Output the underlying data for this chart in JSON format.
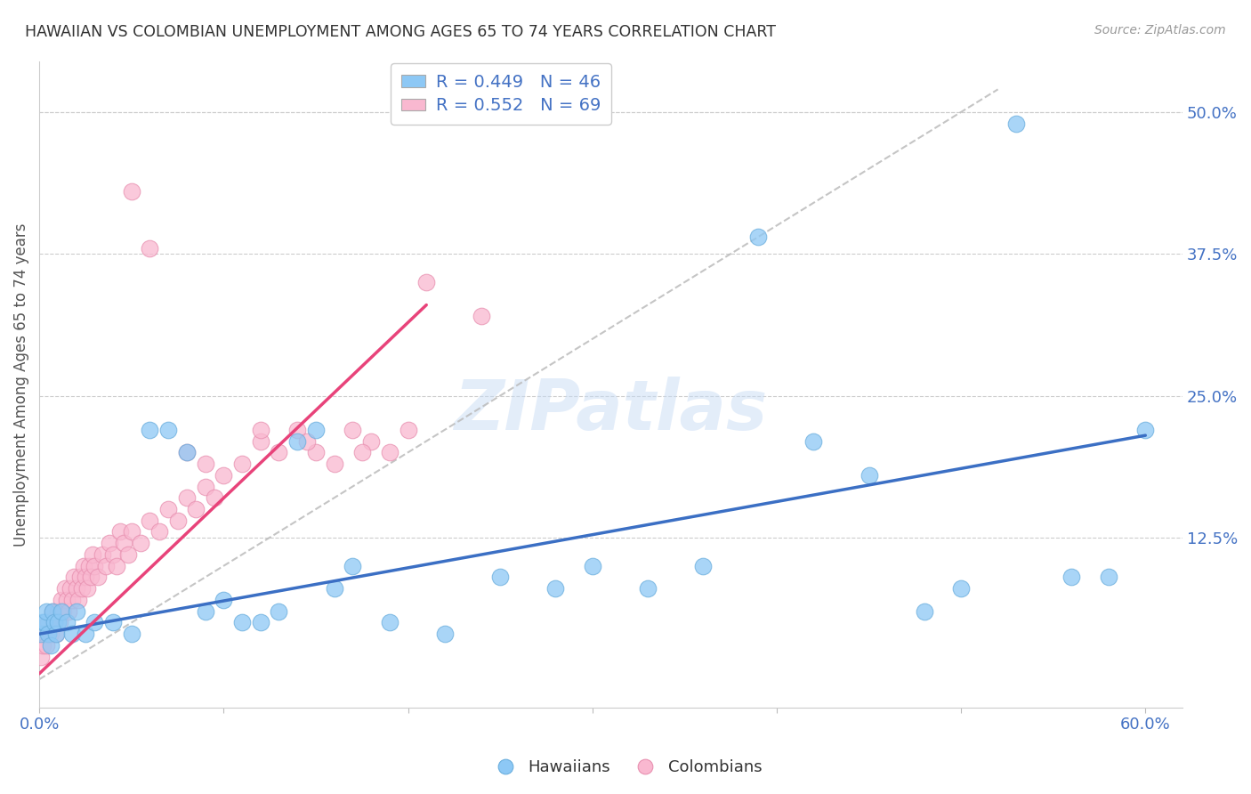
{
  "title": "HAWAIIAN VS COLOMBIAN UNEMPLOYMENT AMONG AGES 65 TO 74 YEARS CORRELATION CHART",
  "source": "Source: ZipAtlas.com",
  "ylabel": "Unemployment Among Ages 65 to 74 years",
  "xlim": [
    0.0,
    0.62
  ],
  "ylim": [
    -0.025,
    0.545
  ],
  "hawaiian_color": "#8DC8F5",
  "hawaiian_edge": "#6AAEDD",
  "colombian_color": "#F9B8D0",
  "colombian_edge": "#E890B0",
  "hawaiian_R": 0.449,
  "hawaiian_N": 46,
  "colombian_R": 0.552,
  "colombian_N": 69,
  "watermark": "ZIPatlas",
  "hawaiian_x": [
    0.001,
    0.002,
    0.003,
    0.004,
    0.005,
    0.006,
    0.007,
    0.008,
    0.009,
    0.01,
    0.012,
    0.015,
    0.018,
    0.02,
    0.025,
    0.03,
    0.04,
    0.05,
    0.06,
    0.07,
    0.08,
    0.09,
    0.1,
    0.11,
    0.12,
    0.13,
    0.14,
    0.15,
    0.16,
    0.17,
    0.19,
    0.22,
    0.25,
    0.28,
    0.3,
    0.33,
    0.36,
    0.39,
    0.42,
    0.45,
    0.48,
    0.5,
    0.53,
    0.56,
    0.58,
    0.6
  ],
  "hawaiian_y": [
    0.04,
    0.05,
    0.05,
    0.06,
    0.04,
    0.03,
    0.06,
    0.05,
    0.04,
    0.05,
    0.06,
    0.05,
    0.04,
    0.06,
    0.04,
    0.05,
    0.05,
    0.04,
    0.22,
    0.22,
    0.2,
    0.06,
    0.07,
    0.05,
    0.05,
    0.06,
    0.21,
    0.22,
    0.08,
    0.1,
    0.05,
    0.04,
    0.09,
    0.08,
    0.1,
    0.08,
    0.1,
    0.39,
    0.21,
    0.18,
    0.06,
    0.08,
    0.49,
    0.09,
    0.09,
    0.22
  ],
  "colombian_x": [
    0.001,
    0.002,
    0.003,
    0.004,
    0.005,
    0.006,
    0.007,
    0.008,
    0.009,
    0.01,
    0.011,
    0.012,
    0.013,
    0.014,
    0.015,
    0.016,
    0.017,
    0.018,
    0.019,
    0.02,
    0.021,
    0.022,
    0.023,
    0.024,
    0.025,
    0.026,
    0.027,
    0.028,
    0.029,
    0.03,
    0.032,
    0.034,
    0.036,
    0.038,
    0.04,
    0.042,
    0.044,
    0.046,
    0.048,
    0.05,
    0.055,
    0.06,
    0.065,
    0.07,
    0.075,
    0.08,
    0.085,
    0.09,
    0.095,
    0.1,
    0.11,
    0.12,
    0.13,
    0.14,
    0.15,
    0.16,
    0.17,
    0.18,
    0.19,
    0.2,
    0.05,
    0.06,
    0.08,
    0.09,
    0.12,
    0.145,
    0.175,
    0.21,
    0.24
  ],
  "colombian_y": [
    0.02,
    0.03,
    0.04,
    0.03,
    0.05,
    0.04,
    0.06,
    0.05,
    0.04,
    0.06,
    0.05,
    0.07,
    0.06,
    0.08,
    0.07,
    0.06,
    0.08,
    0.07,
    0.09,
    0.08,
    0.07,
    0.09,
    0.08,
    0.1,
    0.09,
    0.08,
    0.1,
    0.09,
    0.11,
    0.1,
    0.09,
    0.11,
    0.1,
    0.12,
    0.11,
    0.1,
    0.13,
    0.12,
    0.11,
    0.13,
    0.12,
    0.14,
    0.13,
    0.15,
    0.14,
    0.16,
    0.15,
    0.17,
    0.16,
    0.18,
    0.19,
    0.21,
    0.2,
    0.22,
    0.2,
    0.19,
    0.22,
    0.21,
    0.2,
    0.22,
    0.43,
    0.38,
    0.2,
    0.19,
    0.22,
    0.21,
    0.2,
    0.35,
    0.32
  ],
  "hawaiian_trendline": [
    0.04,
    0.215
  ],
  "hawaiian_trendline_x": [
    0.0,
    0.6
  ],
  "colombian_trendline": [
    0.005,
    0.33
  ],
  "colombian_trendline_x": [
    0.0,
    0.21
  ],
  "diag_line_x": [
    0.0,
    0.52
  ],
  "diag_line_y": [
    0.0,
    0.52
  ]
}
